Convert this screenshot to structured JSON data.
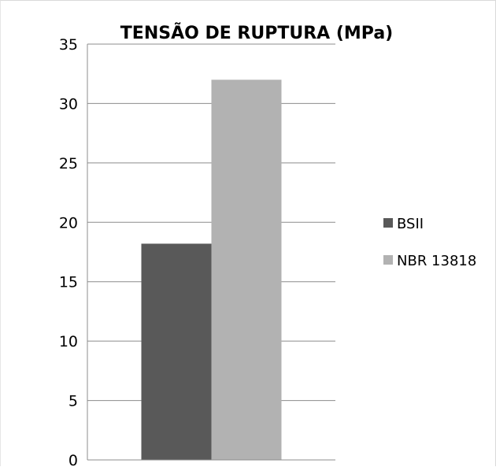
{
  "chart_data": {
    "type": "bar",
    "title": "TENSÃO DE RUPTURA (MPa)",
    "xlabel": "",
    "ylabel": "",
    "categories": [
      ""
    ],
    "series": [
      {
        "name": "BSII",
        "values": [
          18.2
        ],
        "color": "#595959"
      },
      {
        "name": "NBR 13818",
        "values": [
          32
        ],
        "color": "#b2b2b2"
      }
    ],
    "ylim": [
      0,
      35
    ],
    "yticks": [
      "0",
      "5",
      "10",
      "15",
      "20",
      "25",
      "30",
      "35"
    ],
    "grid": true,
    "legend": "right"
  }
}
